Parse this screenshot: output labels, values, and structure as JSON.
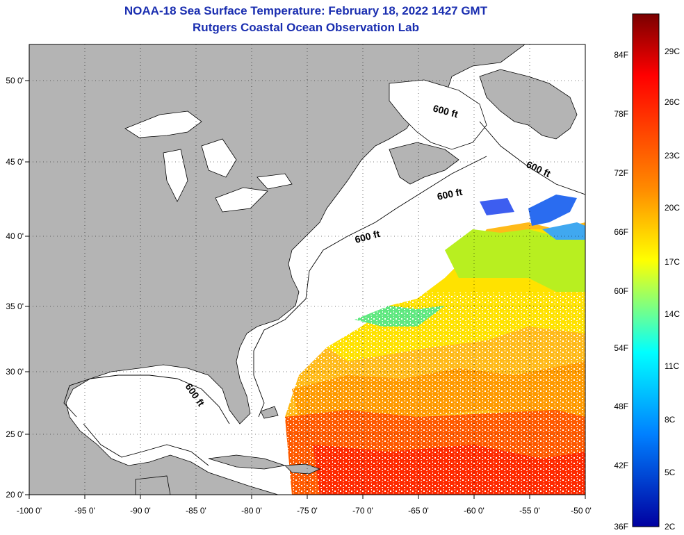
{
  "title": {
    "line1": "NOAA-18 Sea Surface Temperature:  February 18, 2022 1427 GMT",
    "line2": "Rutgers Coastal Ocean Observation Lab"
  },
  "map": {
    "lon_ticks": [
      "-100 0'",
      "-95 0'",
      "-90 0'",
      "-85 0'",
      "-80 0'",
      "-75 0'",
      "-70 0'",
      "-65 0'",
      "-60 0'",
      "-55 0'",
      "-50 0'"
    ],
    "lat_ticks": [
      "50 0'",
      "45 0'",
      "40 0'",
      "35 0'",
      "30 0'",
      "25 0'",
      "20 0'"
    ],
    "contour_labels": [
      "600 ft",
      "600 ft",
      "600 ft",
      "600 ft",
      "600 ft"
    ],
    "land_color": "#b4b4b4",
    "ocean_color": "#ffffff"
  },
  "colorbar": {
    "fahrenheit_labels": [
      "84F",
      "78F",
      "72F",
      "66F",
      "60F",
      "54F",
      "48F",
      "42F",
      "36F"
    ],
    "celsius_labels": [
      "29C",
      "26C",
      "23C",
      "20C",
      "17C",
      "14C",
      "11C",
      "8C",
      "5C",
      "2C"
    ],
    "gradient_colors": [
      "#7a0000",
      "#ff0000",
      "#ff8a00",
      "#ffff00",
      "#00ffff",
      "#0080ff",
      "#0000a0"
    ]
  }
}
